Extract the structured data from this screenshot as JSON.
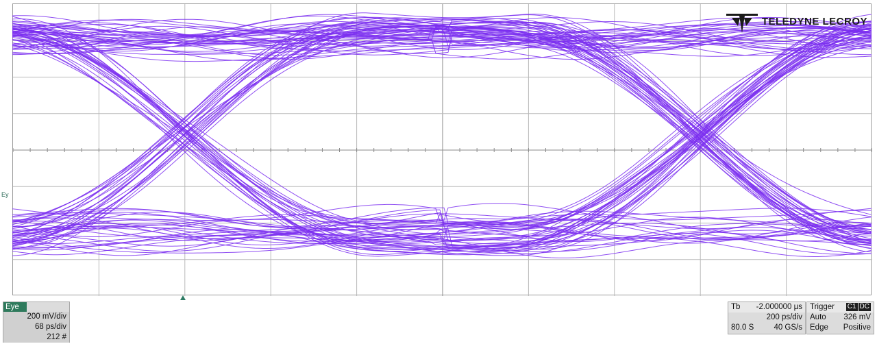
{
  "colors": {
    "trace": "#7b2ff0",
    "grid_line": "#b8b8b8",
    "grid_center": "#8a8a8a",
    "channel_accent": "#2e7a5c"
  },
  "logo": {
    "brand": "TELEDYNE LECROY",
    "icon": "teledyne-logo-icon"
  },
  "channel_label": "Ey",
  "eye_panel": {
    "title": "Eye",
    "vertical_scale": "200 mV/div",
    "horizontal_scale": "68 ps/div",
    "sweeps": "212 #"
  },
  "timebase_panel": {
    "label": "Tb",
    "delay": "-2.000000 µs",
    "time_per_div": "200 ps/div",
    "samples": "80.0 S",
    "sample_rate": "40 GS/s"
  },
  "trigger_panel": {
    "label": "Trigger",
    "source_badge": "C1",
    "coupling_badge": "DC",
    "mode": "Auto",
    "level": "326 mV",
    "type": "Edge",
    "slope": "Positive"
  }
}
